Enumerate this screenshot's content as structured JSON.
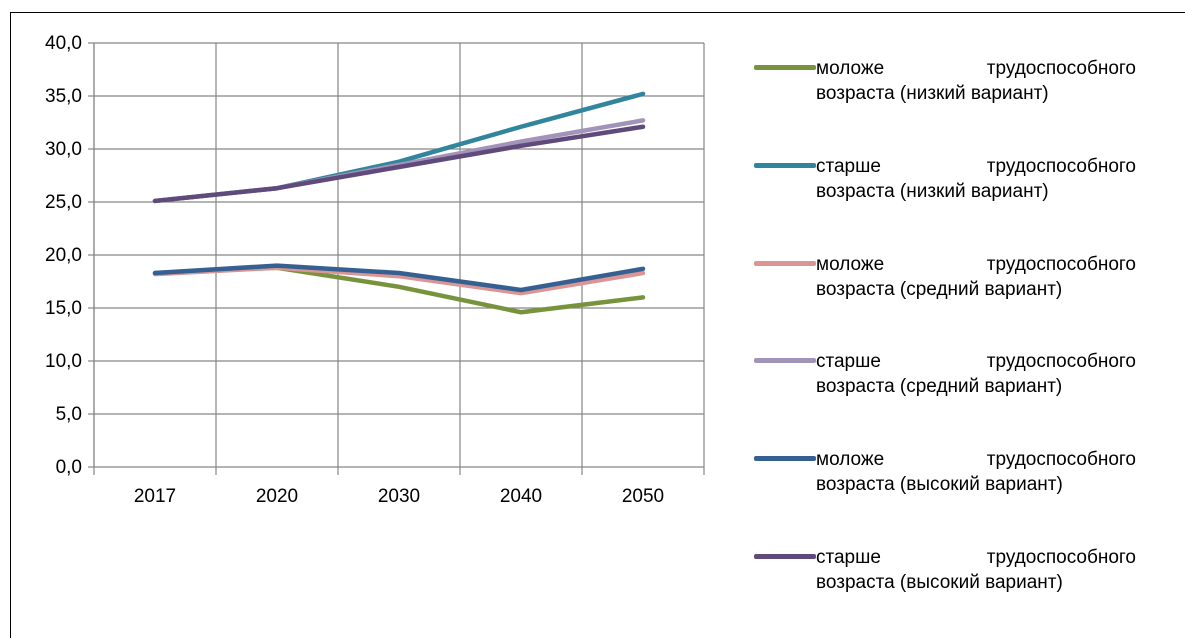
{
  "chart_data": {
    "type": "line",
    "categories": [
      "2017",
      "2020",
      "2030",
      "2040",
      "2050"
    ],
    "y_ticks": [
      "0,0",
      "5,0",
      "10,0",
      "15,0",
      "20,0",
      "25,0",
      "30,0",
      "35,0",
      "40,0"
    ],
    "ylim": [
      0,
      40
    ],
    "grid": true,
    "legend_position": "right",
    "series": [
      {
        "name_line1": "моложе трудоспособного",
        "name_line2": "возраста (низкий вариант)",
        "color": "#77933C",
        "values": [
          18.3,
          18.8,
          17.0,
          14.6,
          16.0
        ]
      },
      {
        "name_line1": "старше трудоспособного",
        "name_line2": "возраста (низкий вариант)",
        "color": "#31859C",
        "values": [
          25.1,
          26.3,
          28.8,
          32.1,
          35.2
        ]
      },
      {
        "name_line1": "моложе трудоспособного",
        "name_line2": "возраста (средний вариант)",
        "color": "#D99694",
        "values": [
          18.2,
          18.8,
          18.0,
          16.4,
          18.3
        ]
      },
      {
        "name_line1": "старше трудоспособного",
        "name_line2": "возраста (средний вариант)",
        "color": "#A193BA",
        "values": [
          25.1,
          26.3,
          28.5,
          30.7,
          32.7
        ]
      },
      {
        "name_line1": "моложе трудоспособного",
        "name_line2": "возраста (высокий вариант)",
        "color": "#376092",
        "values": [
          18.3,
          19.0,
          18.3,
          16.7,
          18.7
        ]
      },
      {
        "name_line1": "старше трудоспособного",
        "name_line2": "возраста (высокий вариант)",
        "color": "#604A7B",
        "values": [
          25.1,
          26.3,
          28.3,
          30.3,
          32.1
        ]
      }
    ]
  }
}
